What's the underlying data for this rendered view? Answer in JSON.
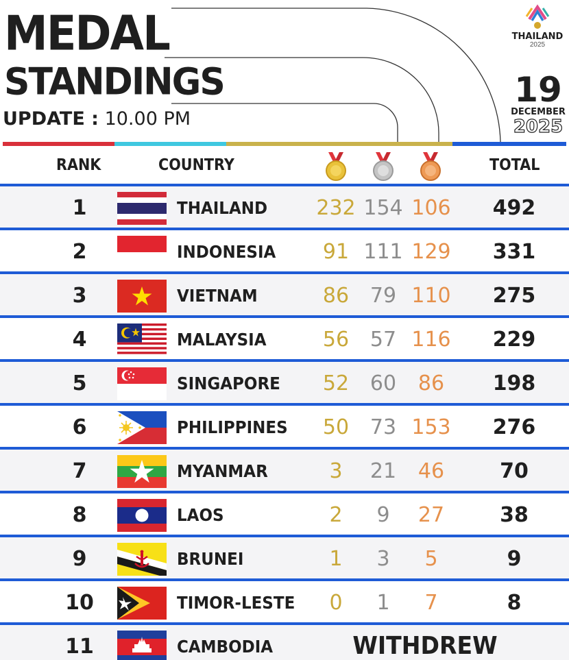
{
  "header": {
    "title_line1": "MEDAL",
    "title_line2": "STANDINGS",
    "update_label": "UPDATE :",
    "update_time": "10.00 PM",
    "logo_name": "THAILAND",
    "logo_year": "2025",
    "date_day": "19",
    "date_month": "DECEMBER",
    "date_year": "2025"
  },
  "columns": {
    "rank": "RANK",
    "country": "COUNTRY",
    "total": "TOTAL",
    "gold_icon": "gold-medal-icon",
    "silver_icon": "silver-medal-icon",
    "bronze_icon": "bronze-medal-icon"
  },
  "colors": {
    "gold": "#c9a83a",
    "silver": "#8d8d8d",
    "bronze": "#e6914c",
    "divider": "#1e5bd6",
    "stripe_red": "#d9303a",
    "stripe_cyan": "#3fc8e0",
    "stripe_gold": "#c9b24c",
    "stripe_blue": "#1e5bd6"
  },
  "rows": [
    {
      "rank": "1",
      "country": "THAILAND",
      "gold": "232",
      "silver": "154",
      "bronze": "106",
      "total": "492",
      "flag": "thailand-flag"
    },
    {
      "rank": "2",
      "country": "INDONESIA",
      "gold": "91",
      "silver": "111",
      "bronze": "129",
      "total": "331",
      "flag": "indonesia-flag"
    },
    {
      "rank": "3",
      "country": "VIETNAM",
      "gold": "86",
      "silver": "79",
      "bronze": "110",
      "total": "275",
      "flag": "vietnam-flag"
    },
    {
      "rank": "4",
      "country": "MALAYSIA",
      "gold": "56",
      "silver": "57",
      "bronze": "116",
      "total": "229",
      "flag": "malaysia-flag"
    },
    {
      "rank": "5",
      "country": "SINGAPORE",
      "gold": "52",
      "silver": "60",
      "bronze": "86",
      "total": "198",
      "flag": "singapore-flag"
    },
    {
      "rank": "6",
      "country": "PHILIPPINES",
      "gold": "50",
      "silver": "73",
      "bronze": "153",
      "total": "276",
      "flag": "philippines-flag"
    },
    {
      "rank": "7",
      "country": "MYANMAR",
      "gold": "3",
      "silver": "21",
      "bronze": "46",
      "total": "70",
      "flag": "myanmar-flag"
    },
    {
      "rank": "8",
      "country": "LAOS",
      "gold": "2",
      "silver": "9",
      "bronze": "27",
      "total": "38",
      "flag": "laos-flag"
    },
    {
      "rank": "9",
      "country": "BRUNEI",
      "gold": "1",
      "silver": "3",
      "bronze": "5",
      "total": "9",
      "flag": "brunei-flag"
    },
    {
      "rank": "10",
      "country": "TIMOR-LESTE",
      "gold": "0",
      "silver": "1",
      "bronze": "7",
      "total": "8",
      "flag": "timor-leste-flag"
    },
    {
      "rank": "11",
      "country": "CAMBODIA",
      "status": "WITHDREW",
      "flag": "cambodia-flag"
    }
  ]
}
